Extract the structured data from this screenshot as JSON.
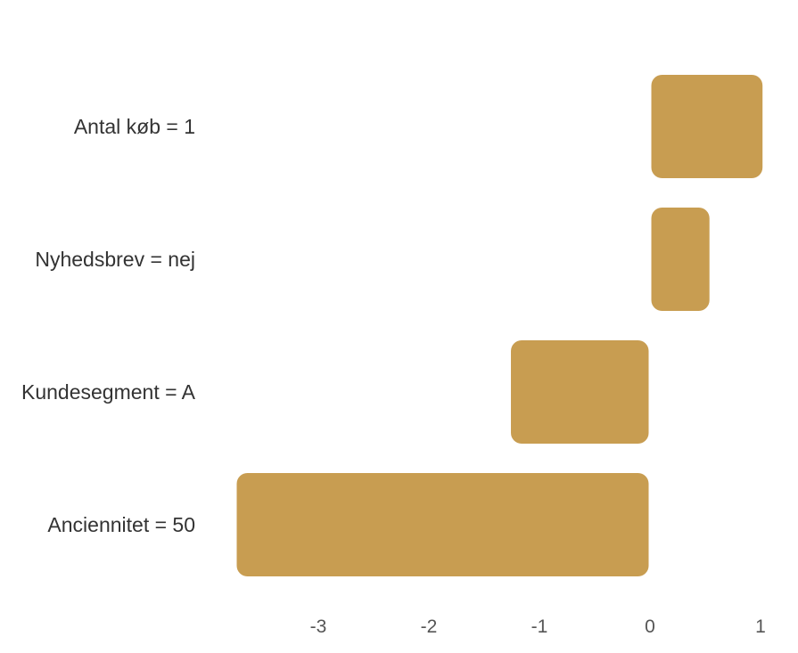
{
  "chart_data": {
    "type": "bar",
    "orientation": "horizontal",
    "categories": [
      "Antal køb = 1",
      "Nyhedsbrev = nej",
      "Kundesegment = A",
      "Anciennitet = 50"
    ],
    "values": [
      1.03,
      0.55,
      -1.27,
      -3.75
    ],
    "xlim": [
      -3.95,
      1.05
    ],
    "xticks": [
      "-3",
      "-2",
      "-1",
      "0",
      "1"
    ],
    "xtick_values": [
      -3,
      -2,
      -1,
      0,
      1
    ],
    "title": "",
    "xlabel": "",
    "ylabel": "",
    "grid": false,
    "bar_color": "#C89D51"
  }
}
